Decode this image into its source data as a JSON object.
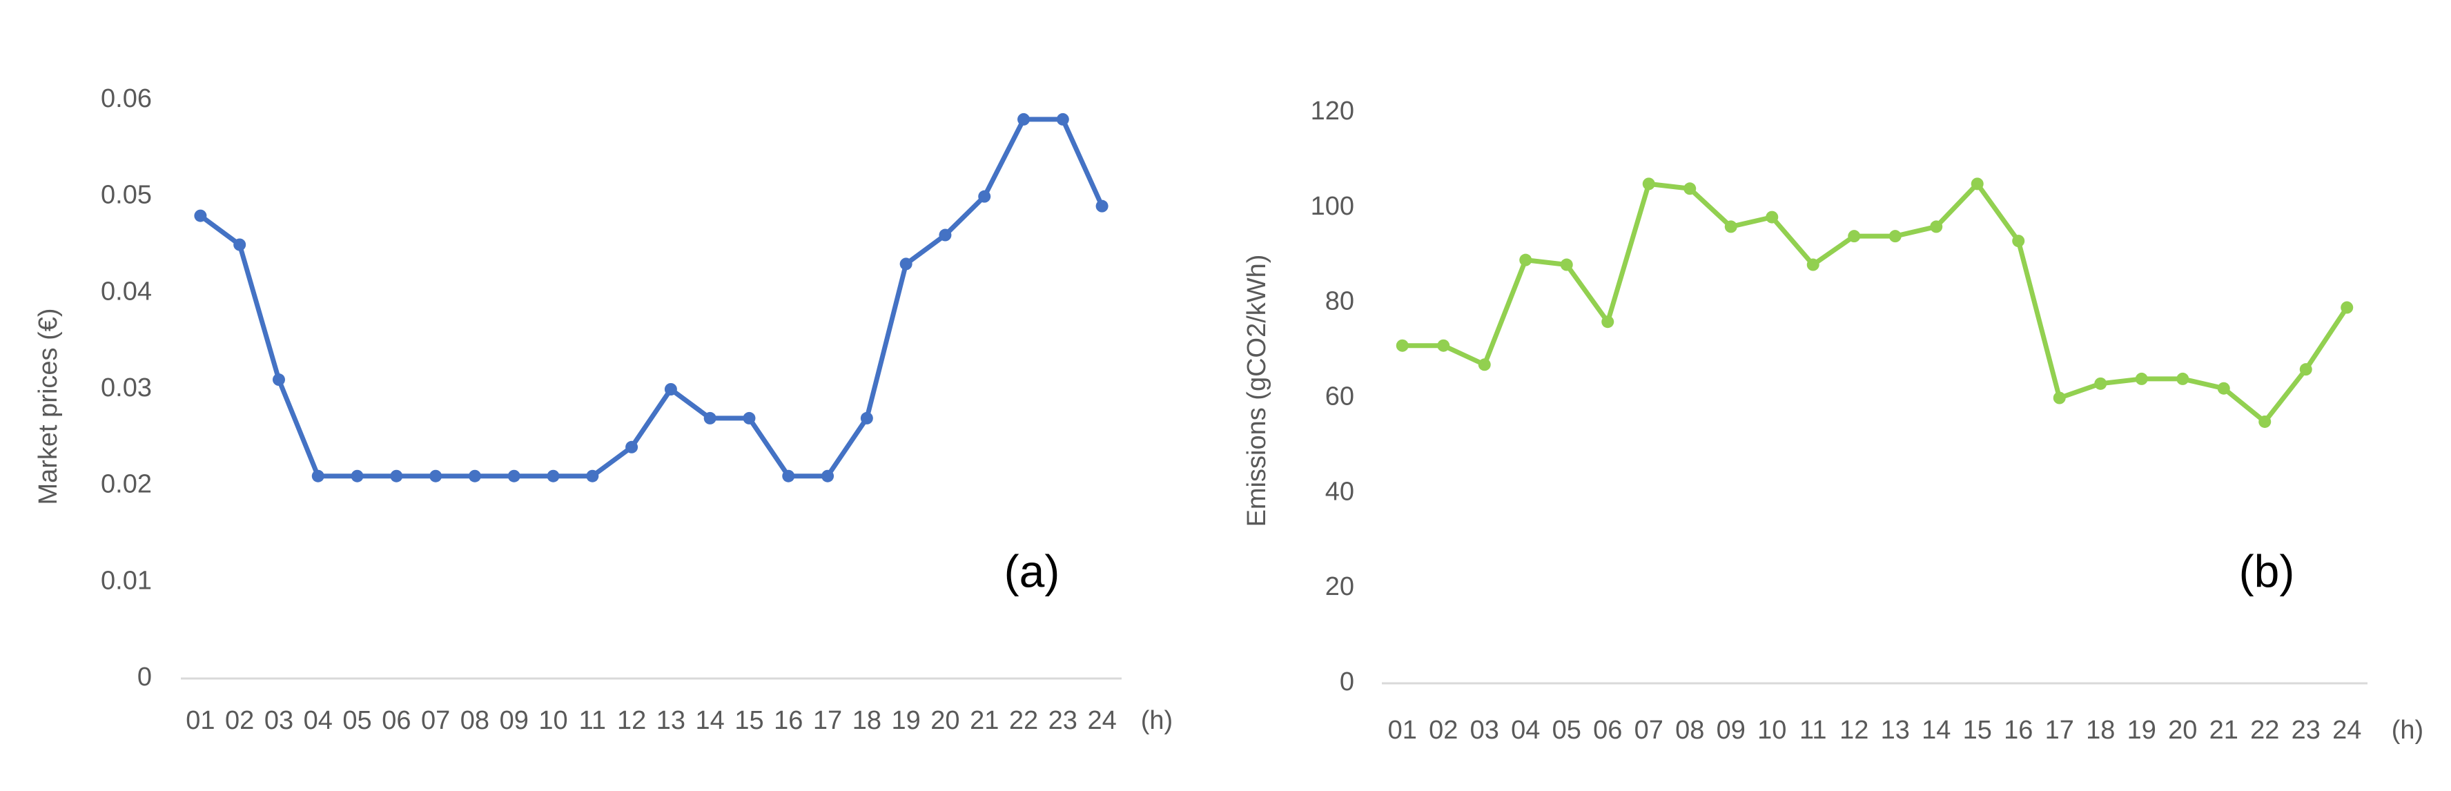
{
  "chart_data": [
    {
      "type": "line",
      "y_label": "Market prices (€)",
      "x_label": "(h)",
      "annotation": "(a)",
      "categories": [
        "01",
        "02",
        "03",
        "04",
        "05",
        "06",
        "07",
        "08",
        "09",
        "10",
        "11",
        "12",
        "13",
        "14",
        "15",
        "16",
        "17",
        "18",
        "19",
        "20",
        "21",
        "22",
        "23",
        "24"
      ],
      "values": [
        0.048,
        0.045,
        0.031,
        0.021,
        0.021,
        0.021,
        0.021,
        0.021,
        0.021,
        0.021,
        0.021,
        0.024,
        0.03,
        0.027,
        0.027,
        0.021,
        0.021,
        0.027,
        0.043,
        0.046,
        0.05,
        0.058,
        0.058,
        0.049
      ],
      "color": "#4472c4",
      "ylim": [
        0,
        0.06
      ],
      "yticks": [
        0,
        0.01,
        0.02,
        0.03,
        0.04,
        0.05,
        0.06
      ],
      "grid": false
    },
    {
      "type": "line",
      "y_label": "Emissions (gCO2/kWh)",
      "x_label": "(h)",
      "annotation": "(b)",
      "categories": [
        "01",
        "02",
        "03",
        "04",
        "05",
        "06",
        "07",
        "08",
        "09",
        "10",
        "11",
        "12",
        "13",
        "14",
        "15",
        "16",
        "17",
        "18",
        "19",
        "20",
        "21",
        "22",
        "23",
        "24"
      ],
      "values": [
        71,
        71,
        67,
        89,
        88,
        76,
        105,
        104,
        96,
        98,
        88,
        94,
        94,
        96,
        105,
        93,
        60,
        63,
        64,
        64,
        62,
        55,
        66,
        79
      ],
      "color": "#92d050",
      "ylim": [
        0,
        120
      ],
      "yticks": [
        0,
        20,
        40,
        60,
        80,
        100,
        120
      ],
      "grid": false
    }
  ]
}
